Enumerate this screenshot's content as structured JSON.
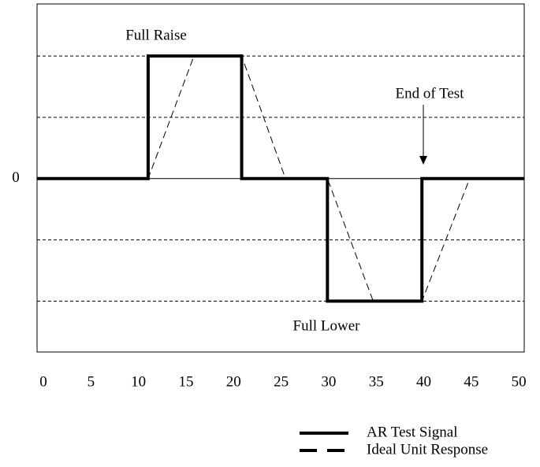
{
  "chart_data": {
    "type": "line",
    "xlim": [
      0,
      50
    ],
    "xticks": [
      0,
      5,
      10,
      15,
      20,
      25,
      30,
      35,
      40,
      45,
      50
    ],
    "ylim": [
      -2.83,
      2.85
    ],
    "yticks": [
      0
    ],
    "gridlines": [
      -2,
      -1,
      1,
      2
    ],
    "series": [
      {
        "name": "AR Test Signal",
        "color": "#000000",
        "style": "solid",
        "x": [
          0,
          11.4,
          11.4,
          21,
          21,
          29.8,
          29.8,
          39.5,
          39.5,
          50
        ],
        "values": [
          0,
          0,
          2,
          2,
          0,
          0,
          -2,
          -2,
          0,
          0
        ]
      },
      {
        "name": "Ideal Unit Response",
        "color": "#000000",
        "style": "dashed",
        "x": [
          0,
          11.4,
          16.1,
          21,
          25.5,
          29.8,
          34.5,
          39.5,
          44.4,
          50
        ],
        "values": [
          0,
          0,
          2,
          2,
          0,
          0,
          -2,
          -2,
          0,
          0
        ]
      }
    ],
    "annotations": [
      "Full Raise",
      "End of Test",
      "Full Lower"
    ],
    "legend": "bottom-right"
  }
}
